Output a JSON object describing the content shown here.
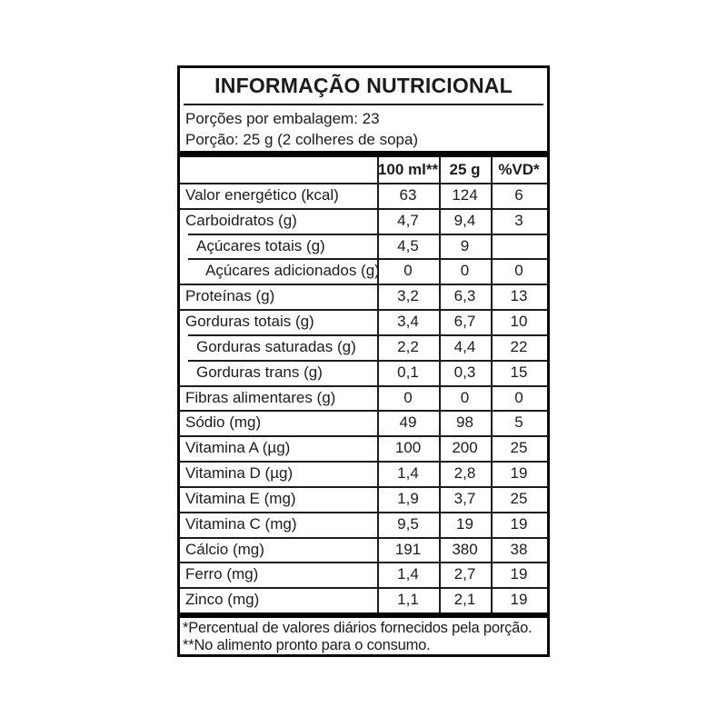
{
  "label": {
    "title": "INFORMAÇÃO NUTRICIONAL",
    "servings_per_package": "Porções por embalagem: 23",
    "serving_size": "Porção: 25 g (2 colheres de sopa)",
    "footnotes": [
      "*Percentual de valores diários fornecidos pela porção.",
      "**No alimento pronto para o consumo."
    ]
  },
  "table": {
    "columns": [
      "100 ml**",
      "25 g",
      "%VD*"
    ],
    "rows": [
      {
        "label": "Valor energético (kcal)",
        "per_100ml": "63",
        "per_25g": "124",
        "pct_vd": "6",
        "indent": 0
      },
      {
        "label": "Carboidratos (g)",
        "per_100ml": "4,7",
        "per_25g": "9,4",
        "pct_vd": "3",
        "indent": 0
      },
      {
        "label": "Açúcares totais (g)",
        "per_100ml": "4,5",
        "per_25g": "9",
        "pct_vd": "",
        "indent": 1
      },
      {
        "label": "Açúcares adicionados (g)",
        "per_100ml": "0",
        "per_25g": "0",
        "pct_vd": "0",
        "indent": 2
      },
      {
        "label": "Proteínas (g)",
        "per_100ml": "3,2",
        "per_25g": "6,3",
        "pct_vd": "13",
        "indent": 0
      },
      {
        "label": "Gorduras totais (g)",
        "per_100ml": "3,4",
        "per_25g": "6,7",
        "pct_vd": "10",
        "indent": 0
      },
      {
        "label": "Gorduras saturadas (g)",
        "per_100ml": "2,2",
        "per_25g": "4,4",
        "pct_vd": "22",
        "indent": 1
      },
      {
        "label": "Gorduras trans (g)",
        "per_100ml": "0,1",
        "per_25g": "0,3",
        "pct_vd": "15",
        "indent": 1
      },
      {
        "label": "Fibras alimentares (g)",
        "per_100ml": "0",
        "per_25g": "0",
        "pct_vd": "0",
        "indent": 0
      },
      {
        "label": "Sódio (mg)",
        "per_100ml": "49",
        "per_25g": "98",
        "pct_vd": "5",
        "indent": 0
      },
      {
        "label": "Vitamina A (µg)",
        "per_100ml": "100",
        "per_25g": "200",
        "pct_vd": "25",
        "indent": 0
      },
      {
        "label": "Vitamina D (µg)",
        "per_100ml": "1,4",
        "per_25g": "2,8",
        "pct_vd": "19",
        "indent": 0
      },
      {
        "label": "Vitamina E (mg)",
        "per_100ml": "1,9",
        "per_25g": "3,7",
        "pct_vd": "25",
        "indent": 0
      },
      {
        "label": "Vitamina C (mg)",
        "per_100ml": "9,5",
        "per_25g": "19",
        "pct_vd": "19",
        "indent": 0
      },
      {
        "label": "Cálcio (mg)",
        "per_100ml": "191",
        "per_25g": "380",
        "pct_vd": "38",
        "indent": 0
      },
      {
        "label": "Ferro (mg)",
        "per_100ml": "1,4",
        "per_25g": "2,7",
        "pct_vd": "19",
        "indent": 0
      },
      {
        "label": "Zinco (mg)",
        "per_100ml": "1,1",
        "per_25g": "2,1",
        "pct_vd": "19",
        "indent": 0
      }
    ]
  },
  "colors": {
    "background": "#ffffff",
    "text": "#1c1c1c",
    "line": "#1c1c1c",
    "thick_bar": "#050505"
  }
}
